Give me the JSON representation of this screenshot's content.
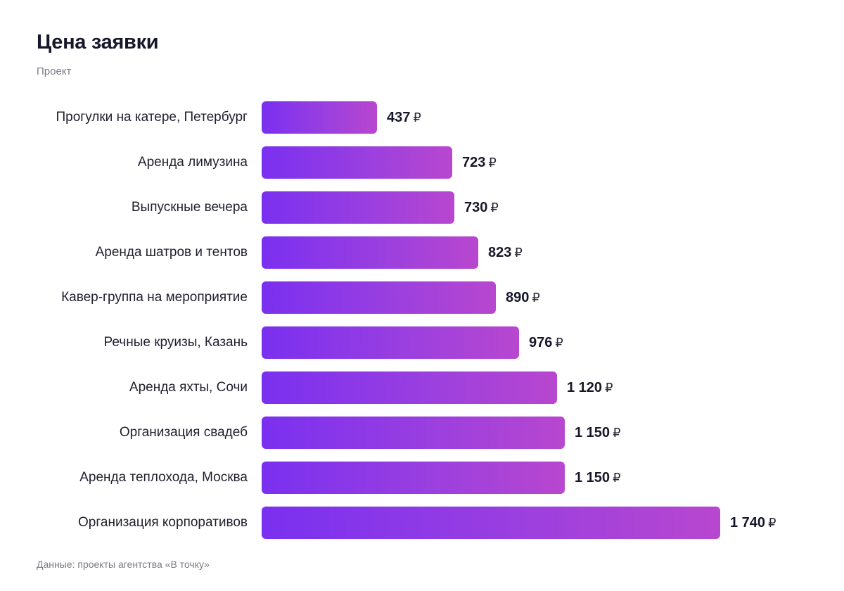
{
  "header": {
    "title": "Цена заявки",
    "subtitle": "Проект"
  },
  "footer": {
    "source": "Данные: проекты агентства «В точку»"
  },
  "colors": {
    "bar_gradient_start": "#7a30f0",
    "bar_gradient_end": "#b847cf",
    "text": "#17172a",
    "muted": "#7a7a85"
  },
  "chart_data": {
    "type": "bar",
    "orientation": "horizontal",
    "title": "Цена заявки",
    "subtitle": "Проект",
    "currency": "₽",
    "categories": [
      "Прогулки на катере, Петербург",
      "Аренда лимузина",
      "Выпускные вечера",
      "Аренда шатров и тентов",
      "Кавер-группа на мероприятие",
      "Речные круизы, Казань",
      "Аренда яхты, Сочи",
      "Организация свадеб",
      "Аренда теплохода, Москва",
      "Организация корпоративов"
    ],
    "values": [
      437,
      723,
      730,
      823,
      890,
      976,
      1120,
      1150,
      1150,
      1740
    ],
    "value_labels": [
      "437",
      "723",
      "730",
      "823",
      "890",
      "976",
      "1 120",
      "1 150",
      "1 150",
      "1 740"
    ],
    "xlim": [
      0,
      1740
    ],
    "grid": false,
    "legend": "none"
  }
}
